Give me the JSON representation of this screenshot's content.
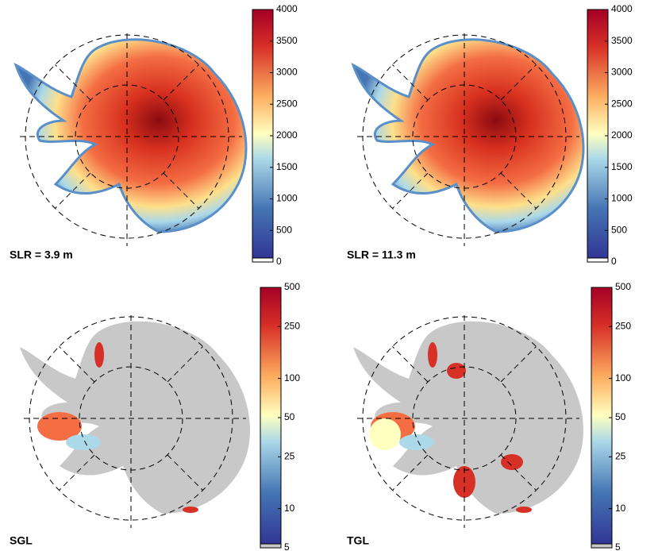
{
  "panels": [
    {
      "label": "SLR = 3.9 m",
      "colorbar": {
        "lim": [
          0,
          4000
        ],
        "log": false,
        "ticks": [
          0,
          500,
          1000,
          1500,
          2000,
          2500,
          3000,
          3500,
          4000
        ]
      }
    },
    {
      "label": "SLR = 11.3 m",
      "colorbar": {
        "lim": [
          0,
          4000
        ],
        "log": false,
        "ticks": [
          0,
          500,
          1000,
          1500,
          2000,
          2500,
          3000,
          3500,
          4000
        ]
      }
    },
    {
      "label": "SGL",
      "colorbar": {
        "lim": [
          5,
          500
        ],
        "log": true,
        "ticks": [
          5,
          10,
          25,
          50,
          100,
          250,
          500
        ]
      }
    },
    {
      "label": "TGL",
      "colorbar": {
        "lim": [
          5,
          500
        ],
        "log": true,
        "ticks": [
          5,
          10,
          25,
          50,
          100,
          250,
          500
        ]
      }
    }
  ]
}
